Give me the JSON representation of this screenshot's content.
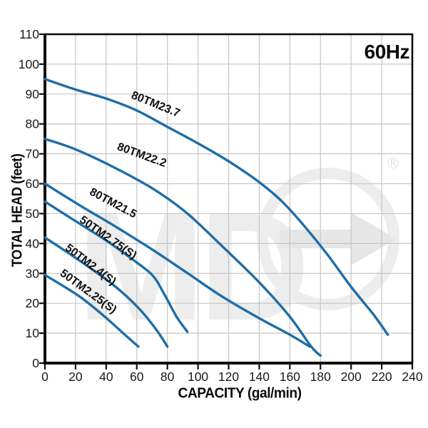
{
  "frequency_badge": "60Hz",
  "watermark": {
    "text": "MD",
    "registered_mark": "®"
  },
  "colors": {
    "curve": "#1f6da6",
    "grid": "#c6c6c6",
    "axis": "#0d0d0d",
    "tick_label": "#1a1a1a",
    "curve_label": "#111111",
    "watermark_light": "#ededed",
    "watermark_mid": "#e6e6e6"
  },
  "chart_data": {
    "type": "line",
    "title": "",
    "xlabel": "CAPACITY (gal/min)",
    "ylabel": "TOTAL HEAD (feet)",
    "xlim": [
      0,
      240
    ],
    "ylim": [
      0,
      110
    ],
    "x_tick_step": 20,
    "y_tick_step": 10,
    "x_ticks": [
      0,
      20,
      40,
      60,
      80,
      100,
      120,
      140,
      160,
      180,
      200,
      220,
      240
    ],
    "y_ticks": [
      0,
      10,
      20,
      30,
      40,
      50,
      60,
      70,
      80,
      90,
      100,
      110
    ],
    "grid": true,
    "legend": "labels-on-curves",
    "series": [
      {
        "name": "80TM23.7",
        "points": [
          [
            0,
            95
          ],
          [
            20,
            91.5
          ],
          [
            40,
            88.5
          ],
          [
            60,
            84.5
          ],
          [
            80,
            79
          ],
          [
            100,
            73.5
          ],
          [
            120,
            67.5
          ],
          [
            140,
            60.5
          ],
          [
            155,
            54
          ],
          [
            170,
            45.5
          ],
          [
            185,
            36
          ],
          [
            200,
            25.5
          ],
          [
            215,
            16
          ],
          [
            224,
            9.5
          ]
        ],
        "label": {
          "x": 71.5,
          "y": 85.5,
          "angle": 22
        }
      },
      {
        "name": "80TM22.2",
        "points": [
          [
            0,
            75
          ],
          [
            20,
            71.5
          ],
          [
            45,
            65.5
          ],
          [
            70,
            58.5
          ],
          [
            92,
            50.5
          ],
          [
            115,
            39.5
          ],
          [
            140,
            27
          ],
          [
            160,
            15.5
          ],
          [
            174,
            5.5
          ],
          [
            180,
            2.5
          ]
        ],
        "label": {
          "x": 62.5,
          "y": 68.5,
          "angle": 20
        }
      },
      {
        "name": "80TM21.5",
        "points": [
          [
            0,
            60
          ],
          [
            22,
            53
          ],
          [
            45,
            46
          ],
          [
            70,
            38
          ],
          [
            92,
            30.5
          ],
          [
            115,
            22.5
          ],
          [
            140,
            15
          ],
          [
            160,
            9.5
          ],
          [
            173,
            5.5
          ]
        ],
        "label": {
          "x": 43.5,
          "y": 52.5,
          "angle": 28
        }
      },
      {
        "name": "50TM2.75(S)",
        "points": [
          [
            0,
            54
          ],
          [
            20,
            47.5
          ],
          [
            40,
            41
          ],
          [
            55,
            35.5
          ],
          [
            70,
            29.5
          ],
          [
            78,
            23
          ],
          [
            86,
            15.5
          ],
          [
            93,
            10.5
          ]
        ],
        "label": {
          "x": 40,
          "y": 41,
          "angle": 35
        }
      },
      {
        "name": "50TM2.4(S)",
        "points": [
          [
            0,
            42
          ],
          [
            22,
            34.5
          ],
          [
            45,
            26
          ],
          [
            61,
            18.5
          ],
          [
            73,
            11
          ],
          [
            80,
            5.5
          ]
        ],
        "label": {
          "x": 28.5,
          "y": 32,
          "angle": 37
        }
      },
      {
        "name": "50TM2.25(S)",
        "points": [
          [
            0,
            29.5
          ],
          [
            22,
            22.5
          ],
          [
            38,
            16
          ],
          [
            50,
            10.5
          ],
          [
            61,
            5.5
          ]
        ],
        "label": {
          "x": 27,
          "y": 23,
          "angle": 36
        }
      }
    ]
  }
}
